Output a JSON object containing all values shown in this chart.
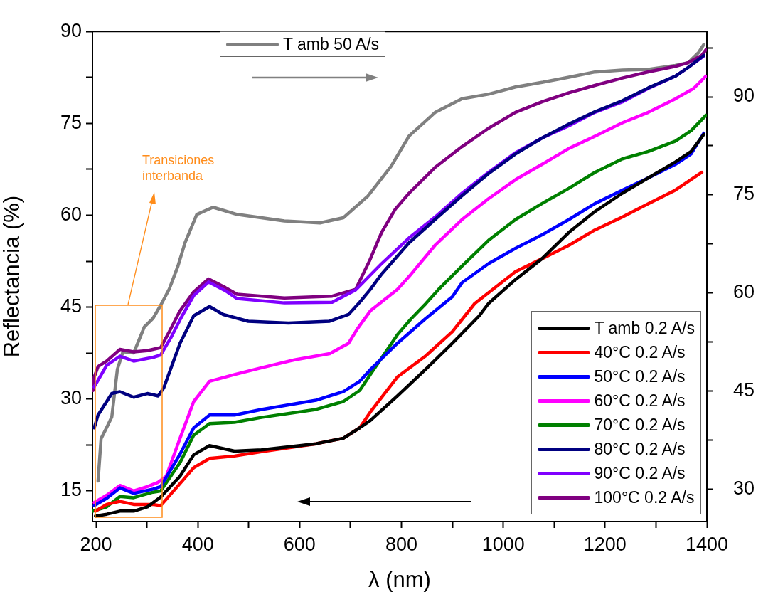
{
  "chart_data": {
    "type": "line",
    "xlabel": "λ (nm)",
    "ylabel": "Reflectancia (%)",
    "annotations": [
      "Transiciones interbanda"
    ],
    "xlim": [
      193,
      1400
    ],
    "xticks": [
      200,
      {
        "value": 300,
        "label": null
      },
      400,
      {
        "value": 500,
        "label": null
      },
      600,
      {
        "value": 700,
        "label": null
      },
      800,
      {
        "value": 900,
        "label": null
      },
      1000,
      {
        "value": 1100,
        "label": null
      },
      1200,
      {
        "value": 1300,
        "label": null
      },
      1400
    ],
    "ylim": [
      10,
      90
    ],
    "yticks": [
      15,
      {
        "value": 22.5,
        "label": null
      },
      30,
      {
        "value": 37.5,
        "label": null
      },
      45,
      {
        "value": 52.5,
        "label": null
      },
      60,
      {
        "value": 67.5,
        "label": null
      },
      75,
      {
        "value": 82.5,
        "label": null
      },
      90
    ],
    "y2lim": [
      25,
      100
    ],
    "y2ticks": [
      30,
      {
        "value": 37.5,
        "label": null
      },
      45,
      {
        "value": 52.5,
        "label": null
      },
      60,
      {
        "value": 67.5,
        "label": null
      },
      75,
      {
        "value": 82.5,
        "label": null
      },
      90,
      {
        "value": 97.5,
        "label": null
      }
    ],
    "grid": false,
    "legend": "right",
    "marker": "none",
    "line_style": "solid",
    "series": [
      {
        "name": "T amb 0.2 A/s",
        "color": "#000000",
        "x": [
          199,
          221,
          247,
          274,
          301,
          327,
          365,
          392,
          423,
          472,
          525,
          632,
          686,
          718,
          739,
          792,
          847,
          900,
          953,
          971,
          1024,
          1076,
          1129,
          1180,
          1234,
          1285,
          1338,
          1369,
          1394
        ],
        "values": [
          10.9,
          11.2,
          11.7,
          11.7,
          12.4,
          14.0,
          17.4,
          20.9,
          22.4,
          21.5,
          21.7,
          22.7,
          23.6,
          25.3,
          26.5,
          30.5,
          34.8,
          39.1,
          43.6,
          45.6,
          49.5,
          52.9,
          57.2,
          60.6,
          63.6,
          66.1,
          68.7,
          70.4,
          73.2
        ]
      },
      {
        "name": "40°C 0.2 A/s",
        "color": "#ff0000",
        "x": [
          199,
          221,
          247,
          274,
          312,
          327,
          365,
          392,
          423,
          472,
          525,
          632,
          686,
          718,
          739,
          792,
          847,
          900,
          944,
          1024,
          1076,
          1129,
          1180,
          1234,
          1285,
          1338,
          1390
        ],
        "values": [
          11.7,
          12.8,
          13.3,
          12.8,
          12.8,
          12.6,
          16.2,
          18.8,
          20.3,
          20.7,
          21.4,
          22.7,
          23.6,
          25.3,
          27.9,
          33.6,
          37.0,
          41.0,
          45.6,
          50.8,
          52.9,
          55.1,
          57.6,
          59.7,
          61.9,
          64.1,
          67.0
        ]
      },
      {
        "name": "50°C 0.2 A/s",
        "color": "#0000ff",
        "x": [
          196.5,
          221,
          247,
          274,
          312,
          327,
          365,
          392,
          423,
          472,
          525,
          632,
          686,
          718,
          739,
          792,
          847,
          900,
          919,
          971,
          1024,
          1076,
          1129,
          1180,
          1234,
          1285,
          1338,
          1369,
          1394
        ],
        "values": [
          12.6,
          13.8,
          15.5,
          14.6,
          15.3,
          15.7,
          21.0,
          25.3,
          27.4,
          27.4,
          28.3,
          29.8,
          31.2,
          32.9,
          34.8,
          39.1,
          43.1,
          46.7,
          49.0,
          52.1,
          54.6,
          56.8,
          59.3,
          61.9,
          64.1,
          66.1,
          68.3,
          70.0,
          73.4
        ]
      },
      {
        "name": "60°C 0.2 A/s",
        "color": "#ff00ff",
        "x": [
          196.5,
          221,
          247,
          274,
          301,
          322,
          338,
          365,
          392,
          423,
          472,
          525,
          590,
          659,
          696,
          713,
          739,
          792,
          815,
          866,
          919,
          971,
          1024,
          1076,
          1129,
          1180,
          1234,
          1285,
          1338,
          1374,
          1398
        ],
        "values": [
          13.1,
          14.3,
          15.9,
          15.0,
          15.7,
          16.4,
          17.4,
          23.6,
          29.6,
          32.9,
          34.0,
          35.1,
          36.4,
          37.4,
          39.1,
          41.4,
          44.4,
          47.9,
          50.0,
          55.1,
          59.3,
          62.7,
          65.8,
          68.3,
          70.9,
          72.9,
          75.1,
          76.8,
          79.0,
          80.7,
          82.7
        ]
      },
      {
        "name": "70°C 0.2 A/s",
        "color": "#008000",
        "x": [
          194,
          221,
          247,
          274,
          312,
          327,
          365,
          392,
          423,
          472,
          525,
          632,
          686,
          718,
          739,
          792,
          819,
          847,
          873,
          919,
          971,
          1024,
          1076,
          1129,
          1180,
          1234,
          1285,
          1338,
          1369,
          1398
        ],
        "values": [
          11.7,
          12.4,
          14.1,
          13.9,
          14.8,
          15.0,
          19.6,
          24.1,
          26.0,
          26.2,
          27.0,
          28.3,
          29.6,
          31.4,
          34.0,
          40.5,
          43.1,
          45.5,
          47.9,
          51.7,
          55.9,
          59.3,
          61.9,
          64.4,
          67.0,
          69.2,
          70.4,
          72.1,
          73.8,
          76.3
        ]
      },
      {
        "name": "80°C 0.2 A/s",
        "color": "#000080",
        "x": [
          196.5,
          204,
          221,
          231,
          247,
          274,
          301,
          322,
          333,
          365,
          392,
          423,
          450,
          499,
          578,
          659,
          696,
          718,
          739,
          761,
          815,
          866,
          919,
          971,
          1024,
          1076,
          1129,
          1180,
          1234,
          1285,
          1338,
          1363,
          1394
        ],
        "values": [
          25.3,
          27.4,
          29.6,
          30.9,
          31.2,
          30.3,
          30.9,
          30.5,
          31.8,
          39.1,
          43.6,
          45.1,
          43.8,
          42.7,
          42.4,
          42.7,
          43.8,
          45.8,
          47.9,
          50.4,
          55.5,
          59.3,
          63.2,
          66.8,
          70.0,
          72.6,
          74.9,
          76.9,
          78.7,
          80.8,
          82.7,
          84.1,
          86.1
        ]
      },
      {
        "name": "90°C 0.2 A/s",
        "color": "#8000ff",
        "x": [
          196.5,
          221,
          247,
          274,
          312,
          327,
          347,
          368,
          392,
          421,
          454,
          477,
          570,
          664,
          710,
          761,
          815,
          866,
          919,
          971,
          1024,
          1076,
          1129,
          1180,
          1234,
          1285,
          1338,
          1363,
          1394
        ],
        "values": [
          32.0,
          35.5,
          37.0,
          36.2,
          36.8,
          37.2,
          40.0,
          43.4,
          46.9,
          49.1,
          47.7,
          46.4,
          45.7,
          45.8,
          47.8,
          52.1,
          56.3,
          59.7,
          63.6,
          67.0,
          70.2,
          72.6,
          74.6,
          76.8,
          78.5,
          80.7,
          82.7,
          84.1,
          86.0
        ]
      },
      {
        "name": "100°C 0.2 A/s",
        "color": "#800080",
        "x": [
          194,
          196.5,
          204,
          221,
          247,
          274,
          301,
          327,
          344,
          365,
          392,
          421,
          454,
          477,
          570,
          664,
          710,
          737,
          761,
          788,
          815,
          866,
          919,
          971,
          1024,
          1076,
          1129,
          1180,
          1234,
          1285,
          1338,
          1363,
          1390,
          1398
        ],
        "values": [
          31.4,
          33.6,
          35.3,
          36.2,
          38.1,
          37.7,
          37.9,
          38.4,
          41.0,
          44.4,
          47.5,
          49.6,
          48.2,
          47.1,
          46.5,
          46.8,
          47.9,
          52.5,
          57.2,
          61.0,
          63.6,
          67.8,
          71.2,
          74.2,
          76.8,
          78.5,
          80.0,
          81.2,
          82.4,
          83.4,
          84.3,
          84.9,
          86.1,
          87.0
        ]
      },
      {
        "name": "T amb 50 A/s",
        "color": "#808080",
        "axis": "y2",
        "x": [
          204,
          210,
          221,
          231,
          242,
          253,
          274,
          295,
          312,
          327,
          344,
          361,
          375,
          398,
          430,
          477,
          570,
          640,
          686,
          734,
          780,
          815,
          866,
          919,
          971,
          1024,
          1076,
          1129,
          1180,
          1234,
          1285,
          1338,
          1363,
          1384,
          1394
        ],
        "values": [
          31.2,
          37.7,
          39.4,
          41.0,
          48.3,
          51.0,
          50.8,
          54.8,
          56.1,
          58.1,
          60.6,
          64.1,
          67.7,
          72.0,
          73.1,
          72.0,
          71.0,
          70.7,
          71.5,
          74.8,
          79.4,
          84.0,
          87.6,
          89.7,
          90.4,
          91.5,
          92.2,
          93.0,
          93.8,
          94.1,
          94.2,
          94.8,
          95.2,
          96.8,
          98.0
        ]
      }
    ]
  }
}
